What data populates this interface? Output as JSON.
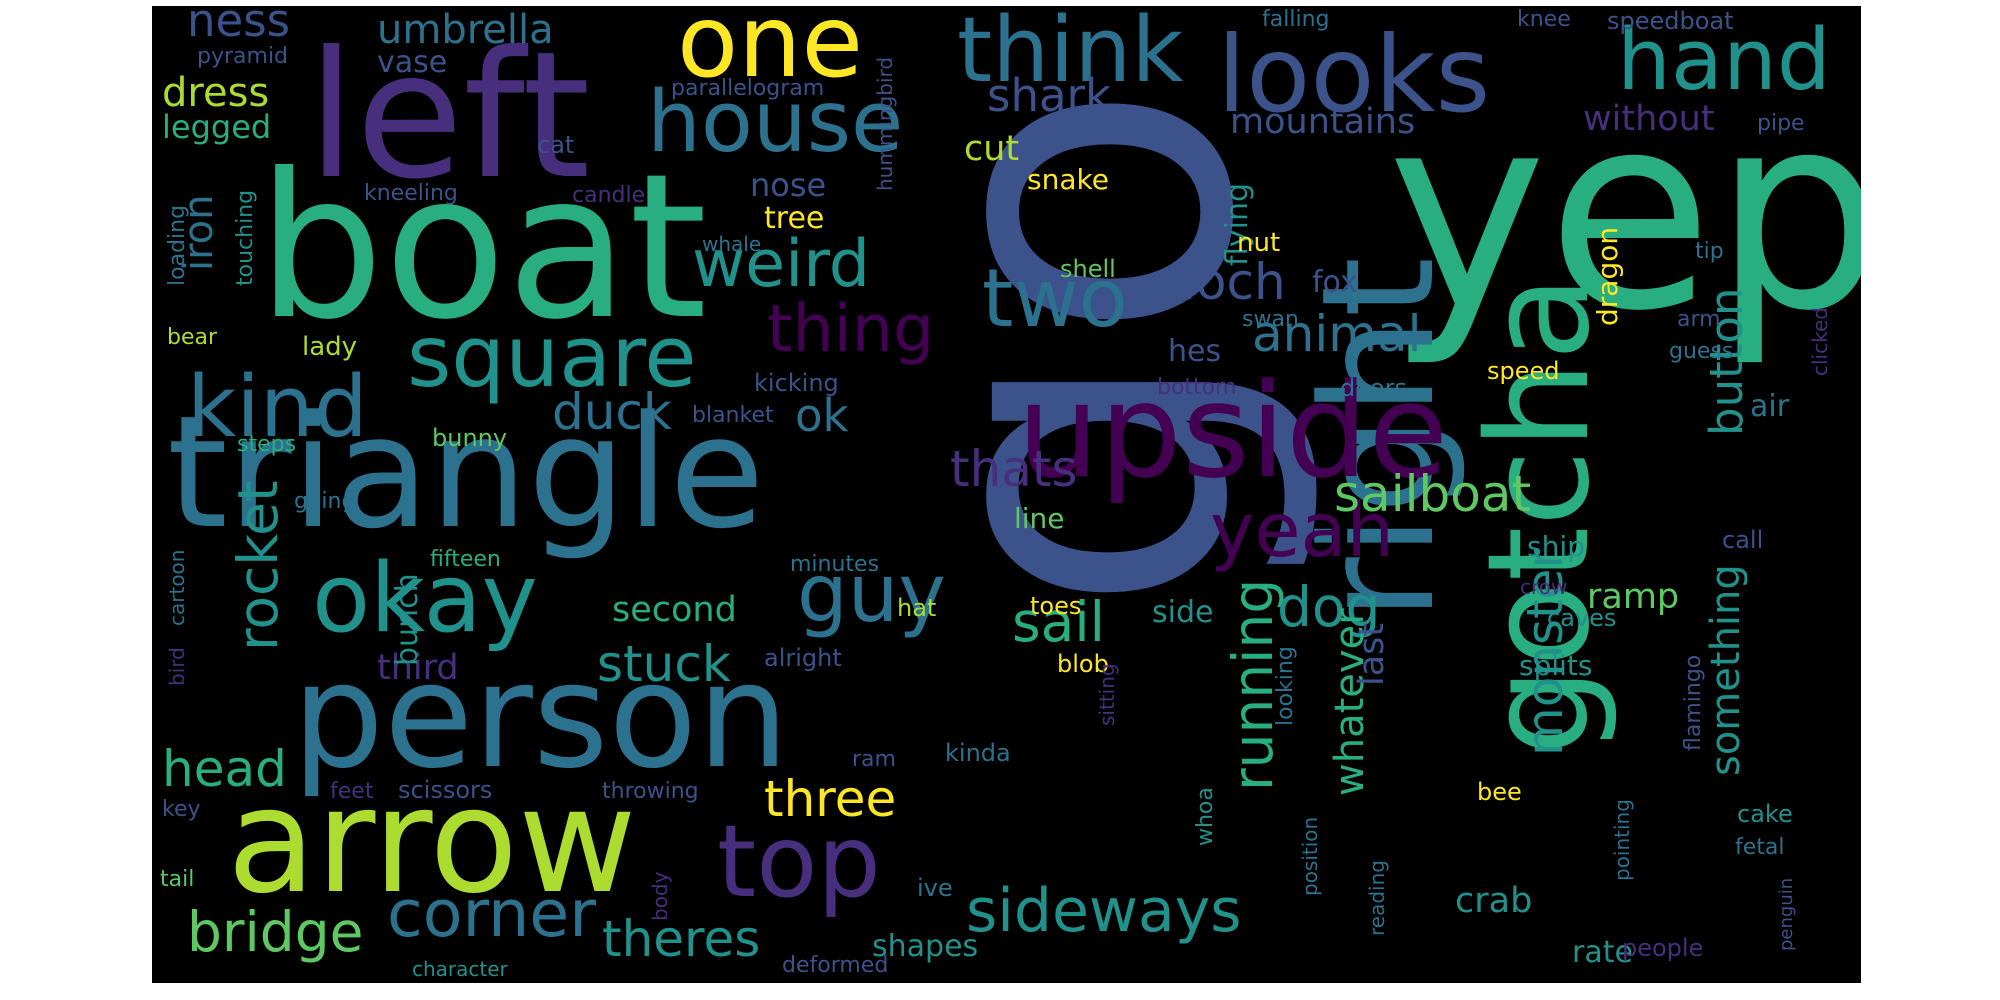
{
  "palette": {
    "background": "#000000",
    "page": "#ffffff",
    "viridis": [
      "#440154",
      "#472f7d",
      "#3b528b",
      "#2c728e",
      "#21918c",
      "#28ae80",
      "#5ec962",
      "#addc30",
      "#fde725"
    ]
  },
  "words": [
    {
      "text": "go",
      "color": "#3b528b"
    },
    {
      "text": "yep",
      "color": "#28ae80"
    },
    {
      "text": "boat",
      "color": "#28ae80"
    },
    {
      "text": "triangle",
      "color": "#2c728e"
    },
    {
      "text": "left",
      "color": "#472f7d"
    },
    {
      "text": "person",
      "color": "#2c728e"
    },
    {
      "text": "arrow",
      "color": "#addc30"
    },
    {
      "text": "right",
      "color": "#2c728e"
    },
    {
      "text": "gotcha",
      "color": "#28ae80"
    },
    {
      "text": "upside",
      "color": "#440154"
    },
    {
      "text": "looks",
      "color": "#3b528b"
    },
    {
      "text": "one",
      "color": "#fde725"
    },
    {
      "text": "think",
      "color": "#2c728e"
    },
    {
      "text": "hand",
      "color": "#21918c"
    },
    {
      "text": "okay",
      "color": "#21918c"
    },
    {
      "text": "square",
      "color": "#21918c"
    },
    {
      "text": "top",
      "color": "#472f7d"
    },
    {
      "text": "house",
      "color": "#2c728e"
    },
    {
      "text": "two",
      "color": "#2c728e"
    },
    {
      "text": "guy",
      "color": "#2c728e"
    },
    {
      "text": "kind",
      "color": "#2c728e"
    },
    {
      "text": "yeah",
      "color": "#440154"
    },
    {
      "text": "corner",
      "color": "#2c728e"
    },
    {
      "text": "weird",
      "color": "#21918c"
    },
    {
      "text": "thing",
      "color": "#440154"
    },
    {
      "text": "sideways",
      "color": "#21918c"
    },
    {
      "text": "bridge",
      "color": "#5ec962"
    },
    {
      "text": "theres",
      "color": "#21918c"
    },
    {
      "text": "sailboat",
      "color": "#5ec962"
    },
    {
      "text": "running",
      "color": "#28ae80"
    },
    {
      "text": "rocket",
      "color": "#21918c"
    },
    {
      "text": "stuck",
      "color": "#21918c"
    },
    {
      "text": "duck",
      "color": "#2c728e"
    },
    {
      "text": "dog",
      "color": "#21918c"
    },
    {
      "text": "sail",
      "color": "#28ae80"
    },
    {
      "text": "animal",
      "color": "#2c728e"
    },
    {
      "text": "monster",
      "color": "#21918c"
    },
    {
      "text": "something",
      "color": "#21918c"
    },
    {
      "text": "head",
      "color": "#28ae80"
    },
    {
      "text": "three",
      "color": "#fde725"
    },
    {
      "text": "thats",
      "color": "#472f7d"
    },
    {
      "text": "shark",
      "color": "#3b528b"
    },
    {
      "text": "loch",
      "color": "#3b528b"
    },
    {
      "text": "button",
      "color": "#21918c"
    },
    {
      "text": "umbrella",
      "color": "#2c728e"
    },
    {
      "text": "ness",
      "color": "#3b528b"
    },
    {
      "text": "dress",
      "color": "#addc30"
    },
    {
      "text": "ok",
      "color": "#2c728e"
    },
    {
      "text": "whatever",
      "color": "#28ae80"
    },
    {
      "text": "last",
      "color": "#3b528b"
    },
    {
      "text": "iron",
      "color": "#2c728e"
    },
    {
      "text": "mountains",
      "color": "#3b528b"
    },
    {
      "text": "without",
      "color": "#472f7d"
    },
    {
      "text": "second",
      "color": "#28ae80"
    },
    {
      "text": "third",
      "color": "#472f7d"
    },
    {
      "text": "crab",
      "color": "#21918c"
    },
    {
      "text": "ramp",
      "color": "#5ec962"
    },
    {
      "text": "cut",
      "color": "#addc30"
    },
    {
      "text": "nose",
      "color": "#3b528b"
    },
    {
      "text": "tree",
      "color": "#fde725"
    },
    {
      "text": "bunch",
      "color": "#21918c"
    },
    {
      "text": "legged",
      "color": "#28ae80"
    },
    {
      "text": "vase",
      "color": "#3b528b"
    },
    {
      "text": "flying",
      "color": "#21918c"
    },
    {
      "text": "fox",
      "color": "#3b528b"
    },
    {
      "text": "hes",
      "color": "#3b528b"
    },
    {
      "text": "side",
      "color": "#21918c"
    },
    {
      "text": "shapes",
      "color": "#21918c"
    },
    {
      "text": "air",
      "color": "#2c728e"
    },
    {
      "text": "rate",
      "color": "#21918c"
    },
    {
      "text": "ship",
      "color": "#21918c"
    },
    {
      "text": "splits",
      "color": "#21918c"
    },
    {
      "text": "dragon",
      "color": "#fde725"
    },
    {
      "text": "speedboat",
      "color": "#3b528b"
    },
    {
      "text": "parallelogram",
      "color": "#3b528b"
    },
    {
      "text": "pyramid",
      "color": "#3b528b"
    },
    {
      "text": "hummingbird",
      "color": "#3b528b"
    },
    {
      "text": "falling",
      "color": "#2c728e"
    },
    {
      "text": "knee",
      "color": "#3b528b"
    },
    {
      "text": "cat",
      "color": "#3b528b"
    },
    {
      "text": "candle",
      "color": "#472f7d"
    },
    {
      "text": "kneeling",
      "color": "#3b528b"
    },
    {
      "text": "touching",
      "color": "#21918c"
    },
    {
      "text": "loading",
      "color": "#2c728e"
    },
    {
      "text": "snake",
      "color": "#fde725"
    },
    {
      "text": "whale",
      "color": "#2c728e"
    },
    {
      "text": "nut",
      "color": "#fde725"
    },
    {
      "text": "shell",
      "color": "#5ec962"
    },
    {
      "text": "swan",
      "color": "#2c728e"
    },
    {
      "text": "bear",
      "color": "#addc30"
    },
    {
      "text": "lady",
      "color": "#addc30"
    },
    {
      "text": "kicking",
      "color": "#3b528b"
    },
    {
      "text": "blanket",
      "color": "#3b528b"
    },
    {
      "text": "bunny",
      "color": "#5ec962"
    },
    {
      "text": "steps",
      "color": "#28ae80"
    },
    {
      "text": "going",
      "color": "#2c728e"
    },
    {
      "text": "line",
      "color": "#5ec962"
    },
    {
      "text": "bottom",
      "color": "#472f7d"
    },
    {
      "text": "doors",
      "color": "#2c728e"
    },
    {
      "text": "speed",
      "color": "#fde725"
    },
    {
      "text": "guess",
      "color": "#2c728e"
    },
    {
      "text": "clicked",
      "color": "#472f7d"
    },
    {
      "text": "tip",
      "color": "#2c728e"
    },
    {
      "text": "arm",
      "color": "#3b528b"
    },
    {
      "text": "pipe",
      "color": "#3b528b"
    },
    {
      "text": "fifteen",
      "color": "#28ae80"
    },
    {
      "text": "minutes",
      "color": "#2c728e"
    },
    {
      "text": "alright",
      "color": "#3b528b"
    },
    {
      "text": "cartoon",
      "color": "#2c728e"
    },
    {
      "text": "bird",
      "color": "#472f7d"
    },
    {
      "text": "hat",
      "color": "#addc30"
    },
    {
      "text": "toes",
      "color": "#fde725"
    },
    {
      "text": "blob",
      "color": "#fde725"
    },
    {
      "text": "crow",
      "color": "#472f7d"
    },
    {
      "text": "caves",
      "color": "#21918c"
    },
    {
      "text": "call",
      "color": "#3b528b"
    },
    {
      "text": "looking",
      "color": "#2c728e"
    },
    {
      "text": "sitting",
      "color": "#472f7d"
    },
    {
      "text": "ram",
      "color": "#3b528b"
    },
    {
      "text": "kinda",
      "color": "#2c728e"
    },
    {
      "text": "flamingo",
      "color": "#3b528b"
    },
    {
      "text": "feet",
      "color": "#472f7d"
    },
    {
      "text": "scissors",
      "color": "#3b528b"
    },
    {
      "text": "throwing",
      "color": "#3b528b"
    },
    {
      "text": "key",
      "color": "#3b528b"
    },
    {
      "text": "whoa",
      "color": "#21918c"
    },
    {
      "text": "position",
      "color": "#2c728e"
    },
    {
      "text": "reading",
      "color": "#2c728e"
    },
    {
      "text": "bee",
      "color": "#fde725"
    },
    {
      "text": "pointing",
      "color": "#2c728e"
    },
    {
      "text": "cake",
      "color": "#21918c"
    },
    {
      "text": "fetal",
      "color": "#2c728e"
    },
    {
      "text": "penguin",
      "color": "#3b528b"
    },
    {
      "text": "tail",
      "color": "#5ec962"
    },
    {
      "text": "body",
      "color": "#472f7d"
    },
    {
      "text": "ive",
      "color": "#2c728e"
    },
    {
      "text": "character",
      "color": "#21918c"
    },
    {
      "text": "deformed",
      "color": "#3b528b"
    },
    {
      "text": "people",
      "color": "#472f7d"
    }
  ]
}
